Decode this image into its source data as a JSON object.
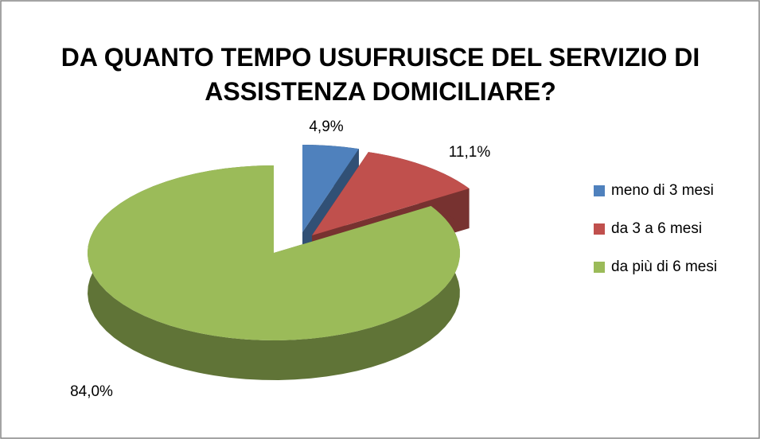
{
  "chart_data": {
    "type": "pie",
    "title": "DA QUANTO TEMPO USUFRUISCE DEL SERVIZIO DI ASSISTENZA DOMICILIARE?",
    "categories": [
      "meno di 3 mesi",
      "da 3 a 6 mesi",
      "da più di 6 mesi"
    ],
    "values": [
      4.9,
      11.1,
      84.0
    ],
    "value_labels": [
      "4,9%",
      "11,1%",
      "84,0%"
    ],
    "colors": [
      "#4f81bd",
      "#c0504d",
      "#9bbb59"
    ],
    "legend": "right"
  }
}
